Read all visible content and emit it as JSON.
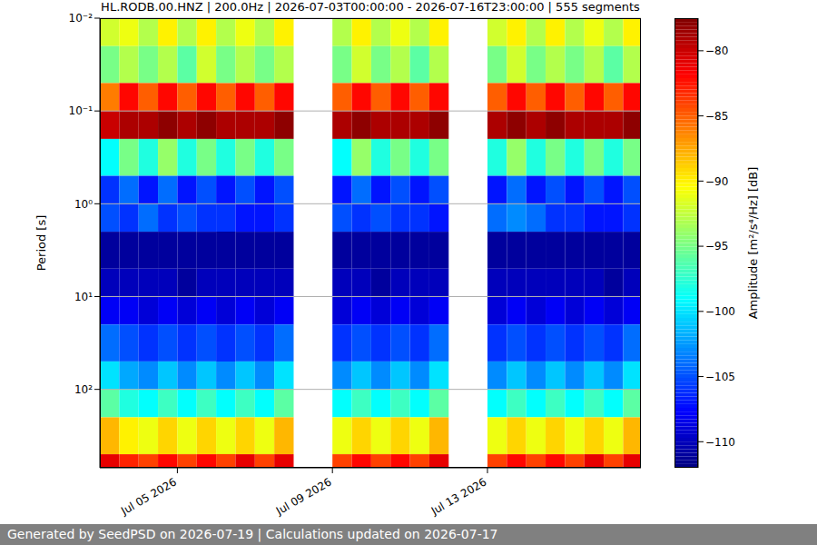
{
  "chart_data": {
    "type": "heatmap",
    "title": "HL.RODB.00.HNZ | 200.0Hz | 2026-07-03T00:00:00 - 2026-07-16T23:00:00 | 555 segments",
    "footer": "Generated by SeedPSD on 2026-07-19 | Calculations updated on 2026-07-17",
    "y_label": "Period [s]",
    "colorbar_label": "Amplitude [m²/s⁴/Hz] [dB]",
    "log": "y",
    "grid": true,
    "xlim": [
      "2026-07-03T00:00",
      "2026-07-16T23:00"
    ],
    "xticks": [
      {
        "value": "2026-07-05T00:00",
        "label": "Jul 05 2026"
      },
      {
        "value": "2026-07-09T00:00",
        "label": "Jul 09 2026"
      },
      {
        "value": "2026-07-13T00:00",
        "label": "Jul 13 2026"
      }
    ],
    "ylim": [
      0.01,
      700
    ],
    "yticks": [
      {
        "value": 0.01,
        "label": "10⁻²"
      },
      {
        "value": 0.1,
        "label": "10⁻¹"
      },
      {
        "value": 1,
        "label": "10⁰"
      },
      {
        "value": 10,
        "label": "10¹"
      },
      {
        "value": 100,
        "label": "10²"
      }
    ],
    "time_edges": [
      "2026-07-03T00:00",
      "2026-07-03T12:00",
      "2026-07-04T00:00",
      "2026-07-04T12:00",
      "2026-07-05T00:00",
      "2026-07-05T12:00",
      "2026-07-06T00:00",
      "2026-07-06T12:00",
      "2026-07-07T00:00",
      "2026-07-07T12:00",
      "2026-07-08T00:00",
      "2026-07-08T12:00",
      "2026-07-09T00:00",
      "2026-07-09T12:00",
      "2026-07-10T00:00",
      "2026-07-10T12:00",
      "2026-07-11T00:00",
      "2026-07-11T12:00",
      "2026-07-12T00:00",
      "2026-07-12T12:00",
      "2026-07-13T00:00",
      "2026-07-13T12:00",
      "2026-07-14T00:00",
      "2026-07-14T12:00",
      "2026-07-15T00:00",
      "2026-07-15T12:00",
      "2026-07-16T00:00",
      "2026-07-16T12:00",
      "2026-07-17T00:00"
    ],
    "period_edges": [
      0.01,
      0.02,
      0.05,
      0.1,
      0.2,
      0.5,
      1,
      2,
      5,
      10,
      20,
      50,
      100,
      200,
      500,
      700
    ],
    "cells": [
      [
        -92,
        -95,
        -86,
        -80,
        -99,
        -106,
        -105,
        -111,
        -110,
        -108,
        -104,
        -100,
        -96,
        -88,
        -81
      ],
      [
        -91,
        -93,
        -82,
        -79,
        -95,
        -104,
        -106,
        -111,
        -110,
        -108,
        -105,
        -102,
        -98,
        -90,
        -83
      ],
      [
        -93,
        -95,
        -85,
        -79,
        -98,
        -107,
        -104,
        -111,
        -110,
        -109,
        -106,
        -103,
        -99,
        -91,
        -84
      ],
      [
        -90,
        -93,
        -82,
        -78,
        -94,
        -104,
        -106,
        -111,
        -110,
        -108,
        -105,
        -101,
        -97,
        -89,
        -82
      ],
      [
        -93,
        -96,
        -85,
        -79,
        -98,
        -107,
        -105,
        -111,
        -111,
        -109,
        -106,
        -103,
        -99,
        -91,
        -84
      ],
      [
        -90,
        -92,
        -82,
        -78,
        -95,
        -105,
        -106,
        -111,
        -110,
        -108,
        -105,
        -101,
        -97,
        -89,
        -82
      ],
      [
        -93,
        -95,
        -85,
        -79,
        -98,
        -107,
        -106,
        -111,
        -110,
        -109,
        -106,
        -103,
        -99,
        -91,
        -84
      ],
      [
        -91,
        -93,
        -82,
        -79,
        -95,
        -105,
        -107,
        -111,
        -110,
        -108,
        -105,
        -101,
        -97,
        -89,
        -81
      ],
      [
        -93,
        -95,
        -85,
        -79,
        -98,
        -107,
        -107,
        -111,
        -110,
        -109,
        -106,
        -103,
        -99,
        -91,
        -84
      ],
      [
        -90,
        -93,
        -82,
        -78,
        -95,
        -105,
        -106,
        -111,
        -110,
        -108,
        -104,
        -100,
        -96,
        -88,
        -81
      ],
      null,
      null,
      [
        -93,
        -95,
        -85,
        -79,
        -99,
        -107,
        -105,
        -111,
        -110,
        -109,
        -106,
        -103,
        -99,
        -91,
        -84
      ],
      [
        -90,
        -92,
        -82,
        -78,
        -94,
        -104,
        -106,
        -111,
        -110,
        -108,
        -105,
        -101,
        -97,
        -89,
        -82
      ],
      [
        -93,
        -95,
        -85,
        -79,
        -98,
        -107,
        -105,
        -111,
        -111,
        -109,
        -106,
        -103,
        -99,
        -91,
        -84
      ],
      [
        -91,
        -93,
        -82,
        -79,
        -95,
        -105,
        -106,
        -111,
        -110,
        -108,
        -105,
        -101,
        -97,
        -89,
        -82
      ],
      [
        -93,
        -96,
        -85,
        -79,
        -98,
        -107,
        -106,
        -111,
        -110,
        -109,
        -106,
        -103,
        -99,
        -91,
        -84
      ],
      [
        -90,
        -93,
        -82,
        -78,
        -95,
        -105,
        -107,
        -111,
        -110,
        -108,
        -104,
        -100,
        -96,
        -88,
        -81
      ],
      null,
      null,
      [
        -92,
        -95,
        -85,
        -79,
        -98,
        -107,
        -104,
        -111,
        -110,
        -109,
        -106,
        -103,
        -99,
        -91,
        -84
      ],
      [
        -90,
        -92,
        -82,
        -78,
        -94,
        -104,
        -103,
        -111,
        -110,
        -108,
        -105,
        -101,
        -97,
        -89,
        -82
      ],
      [
        -93,
        -95,
        -85,
        -79,
        -98,
        -107,
        -104,
        -111,
        -110,
        -109,
        -106,
        -103,
        -99,
        -91,
        -84
      ],
      [
        -90,
        -93,
        -82,
        -78,
        -95,
        -105,
        -106,
        -111,
        -110,
        -108,
        -105,
        -101,
        -97,
        -89,
        -82
      ],
      [
        -93,
        -95,
        -85,
        -79,
        -98,
        -107,
        -106,
        -111,
        -110,
        -109,
        -106,
        -103,
        -99,
        -91,
        -84
      ],
      [
        -91,
        -93,
        -82,
        -79,
        -95,
        -105,
        -107,
        -111,
        -110,
        -108,
        -105,
        -101,
        -97,
        -89,
        -81
      ],
      [
        -93,
        -96,
        -85,
        -79,
        -98,
        -107,
        -107,
        -111,
        -111,
        -109,
        -106,
        -103,
        -99,
        -91,
        -84
      ],
      [
        -90,
        -93,
        -82,
        -78,
        -95,
        -105,
        -106,
        -111,
        -110,
        -108,
        -104,
        -100,
        -96,
        -88,
        -81
      ]
    ],
    "colorbar_range": [
      -112,
      -77.5
    ],
    "colorbar_ticks": [
      {
        "value": -80,
        "label": "−80"
      },
      {
        "value": -85,
        "label": "−85"
      },
      {
        "value": -90,
        "label": "−90"
      },
      {
        "value": -95,
        "label": "−95"
      },
      {
        "value": -100,
        "label": "−100"
      },
      {
        "value": -105,
        "label": "−105"
      },
      {
        "value": -110,
        "label": "−110"
      }
    ]
  }
}
